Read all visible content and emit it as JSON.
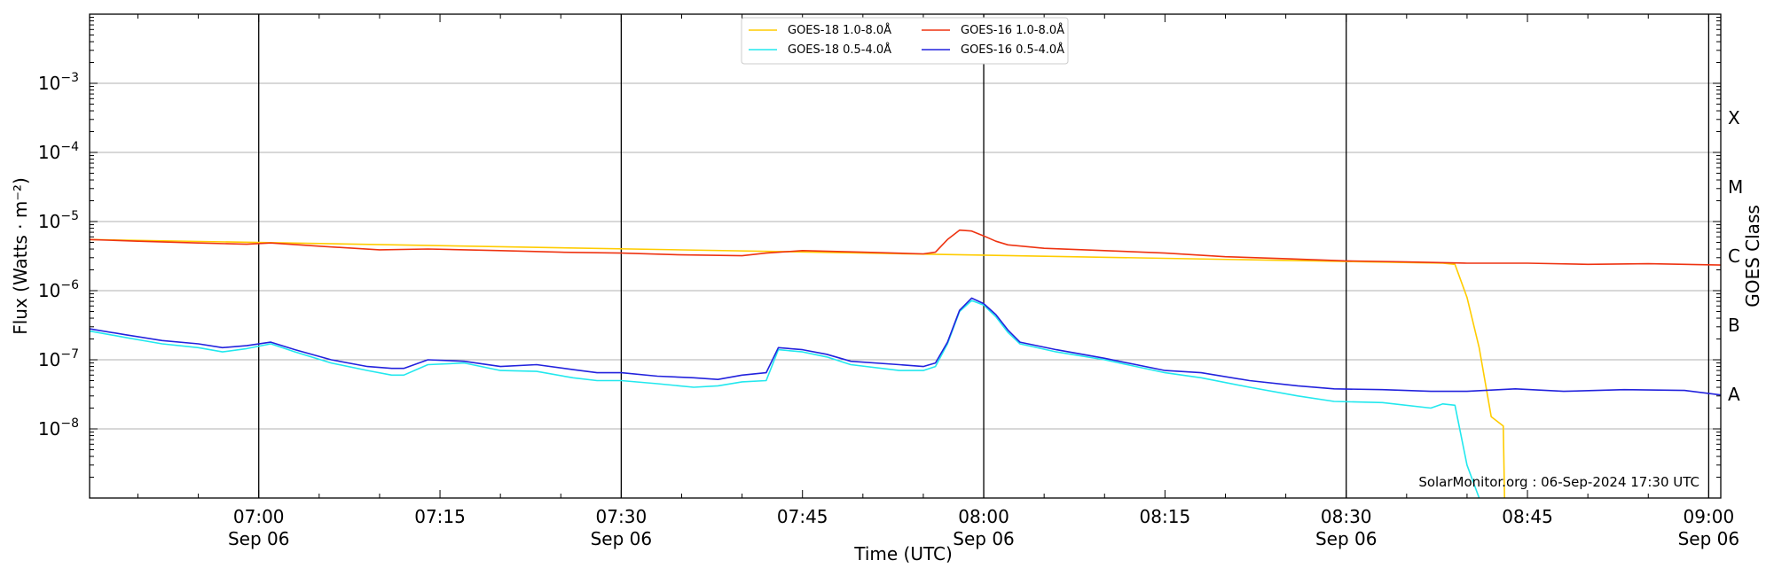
{
  "chart_data": {
    "type": "line",
    "title": "",
    "xlabel": "Time (UTC)",
    "ylabel": "Flux (Watts · m⁻²)",
    "right_ylabel": "GOES Class",
    "y_scale": "log",
    "ylim": [
      1e-09,
      0.01
    ],
    "xlim": [
      "2024-09-06T06:46",
      "2024-09-06T09:01"
    ],
    "grid": "horizontal at decades, vertical at half-hours",
    "legend_position": "top-center",
    "x_ticks": [
      {
        "t": "2024-09-06T07:00",
        "time": "07:00",
        "date": "Sep 06"
      },
      {
        "t": "2024-09-06T07:15",
        "time": "07:15",
        "date": ""
      },
      {
        "t": "2024-09-06T07:30",
        "time": "07:30",
        "date": "Sep 06"
      },
      {
        "t": "2024-09-06T07:45",
        "time": "07:45",
        "date": ""
      },
      {
        "t": "2024-09-06T08:00",
        "time": "08:00",
        "date": "Sep 06"
      },
      {
        "t": "2024-09-06T08:15",
        "time": "08:15",
        "date": ""
      },
      {
        "t": "2024-09-06T08:30",
        "time": "08:30",
        "date": "Sep 06"
      },
      {
        "t": "2024-09-06T08:45",
        "time": "08:45",
        "date": ""
      },
      {
        "t": "2024-09-06T09:00",
        "time": "09:00",
        "date": "Sep 06"
      }
    ],
    "y_ticks": [
      {
        "value": 1e-08,
        "base": "10",
        "exp": "−8"
      },
      {
        "value": 1e-07,
        "base": "10",
        "exp": "−7"
      },
      {
        "value": 1e-06,
        "base": "10",
        "exp": "−6"
      },
      {
        "value": 1e-05,
        "base": "10",
        "exp": "−5"
      },
      {
        "value": 0.0001,
        "base": "10",
        "exp": "−4"
      },
      {
        "value": 0.001,
        "base": "10",
        "exp": "−3"
      }
    ],
    "class_labels": [
      {
        "label": "A",
        "value": 1e-08
      },
      {
        "label": "B",
        "value": 1e-07
      },
      {
        "label": "C",
        "value": 1e-06
      },
      {
        "label": "M",
        "value": 1e-05
      },
      {
        "label": "X",
        "value": 0.0001
      }
    ],
    "series": [
      {
        "name": "GOES-18 1.0-8.0Å",
        "color": "#ffcc00",
        "x": [
          "2024-09-06T06:46",
          "2024-09-06T08:38",
          "2024-09-06T08:39",
          "2024-09-06T08:40",
          "2024-09-06T08:41",
          "2024-09-06T08:42",
          "2024-09-06T08:43",
          "2024-09-06T08:43.1"
        ],
        "y": [
          5.5e-06,
          2.5e-06,
          2.4e-06,
          8e-07,
          1.5e-07,
          1.5e-08,
          1.1e-08,
          1e-09
        ]
      },
      {
        "name": "GOES-16 1.0-8.0Å",
        "color": "#ee3311",
        "x": [
          "2024-09-06T06:46",
          "2024-09-06T06:50",
          "2024-09-06T06:55",
          "2024-09-06T06:59",
          "2024-09-06T07:01",
          "2024-09-06T07:05",
          "2024-09-06T07:10",
          "2024-09-06T07:14",
          "2024-09-06T07:20",
          "2024-09-06T07:25",
          "2024-09-06T07:30",
          "2024-09-06T07:35",
          "2024-09-06T07:40",
          "2024-09-06T07:42",
          "2024-09-06T07:45",
          "2024-09-06T07:50",
          "2024-09-06T07:55",
          "2024-09-06T07:56",
          "2024-09-06T07:57",
          "2024-09-06T07:58",
          "2024-09-06T07:59",
          "2024-09-06T08:00",
          "2024-09-06T08:01",
          "2024-09-06T08:02",
          "2024-09-06T08:05",
          "2024-09-06T08:10",
          "2024-09-06T08:15",
          "2024-09-06T08:20",
          "2024-09-06T08:25",
          "2024-09-06T08:30",
          "2024-09-06T08:35",
          "2024-09-06T08:40",
          "2024-09-06T08:45",
          "2024-09-06T08:50",
          "2024-09-06T08:55",
          "2024-09-06T09:01"
        ],
        "y": [
          5.5e-06,
          5.2e-06,
          4.9e-06,
          4.7e-06,
          4.9e-06,
          4.4e-06,
          3.9e-06,
          4e-06,
          3.8e-06,
          3.6e-06,
          3.5e-06,
          3.3e-06,
          3.2e-06,
          3.5e-06,
          3.8e-06,
          3.6e-06,
          3.4e-06,
          3.6e-06,
          5.5e-06,
          7.5e-06,
          7.3e-06,
          6.2e-06,
          5.2e-06,
          4.6e-06,
          4.1e-06,
          3.8e-06,
          3.5e-06,
          3.1e-06,
          2.9e-06,
          2.7e-06,
          2.6e-06,
          2.5e-06,
          2.5e-06,
          2.4e-06,
          2.45e-06,
          2.35e-06
        ]
      },
      {
        "name": "GOES-18 0.5-4.0Å",
        "color": "#22e8ee",
        "x": [
          "2024-09-06T06:46",
          "2024-09-06T06:49",
          "2024-09-06T06:52",
          "2024-09-06T06:55",
          "2024-09-06T06:57",
          "2024-09-06T06:59",
          "2024-09-06T07:01",
          "2024-09-06T07:03",
          "2024-09-06T07:06",
          "2024-09-06T07:09",
          "2024-09-06T07:11",
          "2024-09-06T07:12",
          "2024-09-06T07:14",
          "2024-09-06T07:17",
          "2024-09-06T07:20",
          "2024-09-06T07:23",
          "2024-09-06T07:26",
          "2024-09-06T07:28",
          "2024-09-06T07:30",
          "2024-09-06T07:33",
          "2024-09-06T07:36",
          "2024-09-06T07:38",
          "2024-09-06T07:40",
          "2024-09-06T07:42",
          "2024-09-06T07:43",
          "2024-09-06T07:45",
          "2024-09-06T07:47",
          "2024-09-06T07:49",
          "2024-09-06T07:53",
          "2024-09-06T07:55",
          "2024-09-06T07:56",
          "2024-09-06T07:57",
          "2024-09-06T07:58",
          "2024-09-06T07:59",
          "2024-09-06T08:00",
          "2024-09-06T08:01",
          "2024-09-06T08:02",
          "2024-09-06T08:03",
          "2024-09-06T08:06",
          "2024-09-06T08:10",
          "2024-09-06T08:15",
          "2024-09-06T08:18",
          "2024-09-06T08:22",
          "2024-09-06T08:26",
          "2024-09-06T08:29",
          "2024-09-06T08:33",
          "2024-09-06T08:37",
          "2024-09-06T08:38",
          "2024-09-06T08:39",
          "2024-09-06T08:40",
          "2024-09-06T08:41"
        ],
        "y": [
          2.6e-07,
          2.1e-07,
          1.7e-07,
          1.5e-07,
          1.3e-07,
          1.45e-07,
          1.7e-07,
          1.3e-07,
          9e-08,
          7e-08,
          6e-08,
          6e-08,
          8.5e-08,
          9e-08,
          7e-08,
          6.8e-08,
          5.5e-08,
          5e-08,
          5e-08,
          4.5e-08,
          4e-08,
          4.2e-08,
          4.8e-08,
          5e-08,
          1.4e-07,
          1.3e-07,
          1.1e-07,
          8.5e-08,
          7e-08,
          7e-08,
          8e-08,
          1.7e-07,
          5e-07,
          7.2e-07,
          6.2e-07,
          4.2e-07,
          2.5e-07,
          1.7e-07,
          1.3e-07,
          1e-07,
          6.5e-08,
          5.5e-08,
          4e-08,
          3e-08,
          2.5e-08,
          2.4e-08,
          2e-08,
          2.3e-08,
          2.2e-08,
          3e-09,
          1e-09
        ]
      },
      {
        "name": "GOES-16 0.5-4.0Å",
        "color": "#2222dd",
        "x": [
          "2024-09-06T06:46",
          "2024-09-06T06:49",
          "2024-09-06T06:52",
          "2024-09-06T06:55",
          "2024-09-06T06:57",
          "2024-09-06T06:59",
          "2024-09-06T07:01",
          "2024-09-06T07:03",
          "2024-09-06T07:06",
          "2024-09-06T07:09",
          "2024-09-06T07:11",
          "2024-09-06T07:12",
          "2024-09-06T07:14",
          "2024-09-06T07:17",
          "2024-09-06T07:20",
          "2024-09-06T07:23",
          "2024-09-06T07:26",
          "2024-09-06T07:28",
          "2024-09-06T07:30",
          "2024-09-06T07:33",
          "2024-09-06T07:36",
          "2024-09-06T07:38",
          "2024-09-06T07:40",
          "2024-09-06T07:42",
          "2024-09-06T07:43",
          "2024-09-06T07:45",
          "2024-09-06T07:47",
          "2024-09-06T07:49",
          "2024-09-06T07:53",
          "2024-09-06T07:55",
          "2024-09-06T07:56",
          "2024-09-06T07:57",
          "2024-09-06T07:58",
          "2024-09-06T07:59",
          "2024-09-06T08:00",
          "2024-09-06T08:01",
          "2024-09-06T08:02",
          "2024-09-06T08:03",
          "2024-09-06T08:06",
          "2024-09-06T08:10",
          "2024-09-06T08:15",
          "2024-09-06T08:18",
          "2024-09-06T08:22",
          "2024-09-06T08:26",
          "2024-09-06T08:29",
          "2024-09-06T08:33",
          "2024-09-06T08:37",
          "2024-09-06T08:40",
          "2024-09-06T08:44",
          "2024-09-06T08:48",
          "2024-09-06T08:53",
          "2024-09-06T08:58",
          "2024-09-06T09:01"
        ],
        "y": [
          2.8e-07,
          2.3e-07,
          1.9e-07,
          1.7e-07,
          1.5e-07,
          1.6e-07,
          1.8e-07,
          1.4e-07,
          1e-07,
          8e-08,
          7.5e-08,
          7.5e-08,
          1e-07,
          9.5e-08,
          8e-08,
          8.5e-08,
          7.2e-08,
          6.5e-08,
          6.5e-08,
          5.8e-08,
          5.5e-08,
          5.2e-08,
          6e-08,
          6.5e-08,
          1.5e-07,
          1.4e-07,
          1.2e-07,
          9.5e-08,
          8.5e-08,
          8e-08,
          9e-08,
          1.8e-07,
          5.2e-07,
          7.8e-07,
          6.5e-07,
          4.5e-07,
          2.7e-07,
          1.8e-07,
          1.4e-07,
          1.05e-07,
          7e-08,
          6.5e-08,
          5e-08,
          4.2e-08,
          3.8e-08,
          3.7e-08,
          3.5e-08,
          3.5e-08,
          3.8e-08,
          3.5e-08,
          3.7e-08,
          3.6e-08,
          3.1e-08
        ]
      }
    ]
  },
  "credit": "SolarMonitor.org : 06-Sep-2024 17:30 UTC"
}
